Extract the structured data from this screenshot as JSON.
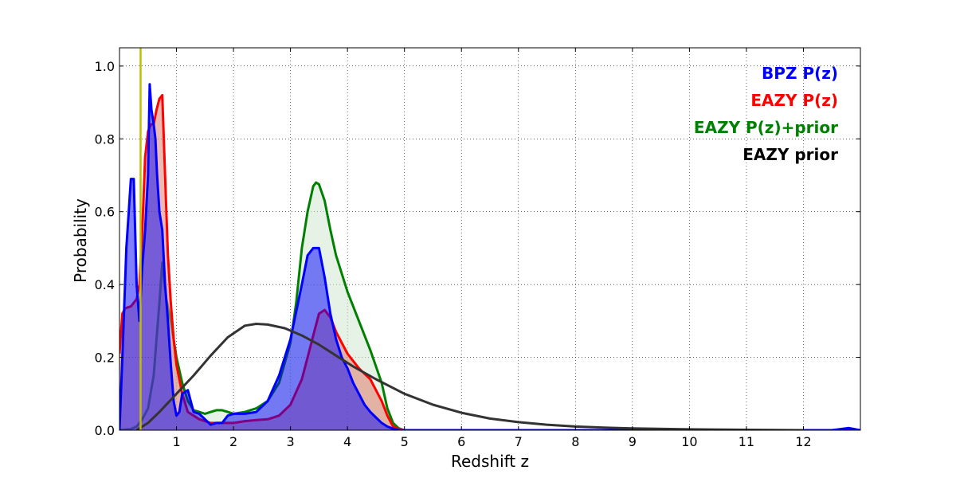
{
  "chart_data": {
    "type": "area",
    "xlabel": "Redshift z",
    "ylabel": "Probability",
    "xlim": [
      0,
      13
    ],
    "ylim": [
      0,
      1.05
    ],
    "x_ticks": [
      1,
      2,
      3,
      4,
      5,
      6,
      7,
      8,
      9,
      10,
      11,
      12
    ],
    "x_tick_labels": [
      "1",
      "2",
      "3",
      "4",
      "5",
      "6",
      "7",
      "8",
      "9",
      "10",
      "11",
      "12"
    ],
    "y_ticks": [
      0,
      0.2,
      0.4,
      0.6,
      0.8,
      1.0
    ],
    "y_tick_labels": [
      "0.0",
      "0.2",
      "0.4",
      "0.6",
      "0.8",
      "1.0"
    ],
    "grid": true,
    "legend_position": "top-right",
    "vertical_line": {
      "x": 0.37,
      "color": "#bfbf00"
    },
    "series": [
      {
        "name": "BPZ P(z)",
        "color": "#0000ff",
        "fill": "#0000ff",
        "filled": true,
        "x": [
          0,
          0.05,
          0.12,
          0.2,
          0.25,
          0.3,
          0.35,
          0.4,
          0.45,
          0.5,
          0.53,
          0.56,
          0.6,
          0.63,
          0.66,
          0.7,
          0.75,
          0.8,
          0.85,
          0.9,
          0.95,
          1.0,
          1.05,
          1.1,
          1.2,
          1.3,
          1.4,
          1.5,
          1.6,
          1.7,
          1.8,
          1.9,
          2.0,
          2.2,
          2.4,
          2.6,
          2.8,
          3.0,
          3.2,
          3.3,
          3.4,
          3.5,
          3.6,
          3.7,
          3.8,
          3.9,
          4.0,
          4.1,
          4.2,
          4.3,
          4.4,
          4.5,
          4.6,
          4.7,
          4.8,
          4.9,
          5.0,
          5.5,
          12.5,
          12.8,
          13.0
        ],
        "y": [
          0.0,
          0.2,
          0.5,
          0.69,
          0.69,
          0.4,
          0.3,
          0.45,
          0.55,
          0.7,
          0.95,
          0.88,
          0.84,
          0.8,
          0.7,
          0.6,
          0.55,
          0.4,
          0.3,
          0.18,
          0.08,
          0.04,
          0.05,
          0.1,
          0.11,
          0.05,
          0.045,
          0.03,
          0.015,
          0.02,
          0.02,
          0.04,
          0.045,
          0.045,
          0.05,
          0.08,
          0.15,
          0.25,
          0.4,
          0.48,
          0.5,
          0.5,
          0.42,
          0.32,
          0.25,
          0.2,
          0.17,
          0.13,
          0.1,
          0.07,
          0.05,
          0.035,
          0.02,
          0.01,
          0.004,
          0.0,
          0.0,
          0.0,
          0.0,
          0.006,
          0.0
        ]
      },
      {
        "name": "EAZY P(z)",
        "color": "#ff0000",
        "fill": "#e08070",
        "filled": true,
        "x": [
          0,
          0.05,
          0.1,
          0.2,
          0.3,
          0.35,
          0.4,
          0.45,
          0.5,
          0.55,
          0.6,
          0.65,
          0.7,
          0.75,
          0.8,
          0.85,
          0.9,
          0.95,
          1.0,
          1.05,
          1.1,
          1.2,
          1.4,
          1.6,
          1.8,
          2.0,
          2.2,
          2.4,
          2.6,
          2.8,
          3.0,
          3.2,
          3.3,
          3.4,
          3.5,
          3.6,
          3.7,
          3.8,
          3.9,
          4.0,
          4.2,
          4.4,
          4.6,
          4.7,
          4.8,
          4.9,
          5.0,
          13.0
        ],
        "y": [
          0.21,
          0.32,
          0.335,
          0.34,
          0.36,
          0.4,
          0.55,
          0.75,
          0.82,
          0.84,
          0.84,
          0.88,
          0.91,
          0.92,
          0.7,
          0.48,
          0.35,
          0.25,
          0.18,
          0.14,
          0.1,
          0.05,
          0.03,
          0.02,
          0.02,
          0.02,
          0.025,
          0.028,
          0.03,
          0.04,
          0.07,
          0.14,
          0.2,
          0.26,
          0.32,
          0.33,
          0.31,
          0.27,
          0.24,
          0.21,
          0.17,
          0.14,
          0.08,
          0.04,
          0.01,
          0.003,
          0.0,
          0.0
        ]
      },
      {
        "name": "EAZY P(z)+prior",
        "color": "#008000",
        "fill": "#cfe8cf",
        "filled": true,
        "x": [
          0,
          0.2,
          0.3,
          0.4,
          0.5,
          0.6,
          0.7,
          0.75,
          0.78,
          0.82,
          0.9,
          1.0,
          1.1,
          1.2,
          1.3,
          1.4,
          1.5,
          1.6,
          1.7,
          1.8,
          1.9,
          2.0,
          2.2,
          2.4,
          2.6,
          2.8,
          3.0,
          3.1,
          3.2,
          3.3,
          3.4,
          3.45,
          3.5,
          3.6,
          3.7,
          3.8,
          3.9,
          4.0,
          4.2,
          4.4,
          4.6,
          4.7,
          4.8,
          4.9,
          5.0,
          13.0
        ],
        "y": [
          0.0,
          0.003,
          0.01,
          0.03,
          0.06,
          0.15,
          0.35,
          0.46,
          0.42,
          0.36,
          0.3,
          0.2,
          0.13,
          0.08,
          0.055,
          0.05,
          0.045,
          0.05,
          0.055,
          0.055,
          0.05,
          0.045,
          0.05,
          0.06,
          0.08,
          0.13,
          0.24,
          0.35,
          0.5,
          0.6,
          0.67,
          0.68,
          0.675,
          0.63,
          0.55,
          0.48,
          0.43,
          0.38,
          0.3,
          0.22,
          0.13,
          0.06,
          0.02,
          0.005,
          0.0,
          0.0
        ]
      },
      {
        "name": "EAZY prior",
        "color": "#333333",
        "fill": "none",
        "filled": false,
        "x": [
          0.3,
          0.5,
          0.7,
          1.0,
          1.3,
          1.6,
          1.9,
          2.2,
          2.4,
          2.6,
          2.9,
          3.2,
          3.5,
          3.8,
          4.1,
          4.5,
          5.0,
          5.5,
          6.0,
          6.5,
          7.0,
          7.5,
          8.0,
          8.5,
          9.0,
          10.0,
          11.0,
          12.0
        ],
        "y": [
          0.0,
          0.02,
          0.05,
          0.1,
          0.15,
          0.205,
          0.255,
          0.287,
          0.292,
          0.29,
          0.28,
          0.26,
          0.235,
          0.205,
          0.175,
          0.14,
          0.1,
          0.07,
          0.048,
          0.032,
          0.022,
          0.015,
          0.01,
          0.007,
          0.005,
          0.0025,
          0.001,
          0.0
        ]
      }
    ]
  }
}
